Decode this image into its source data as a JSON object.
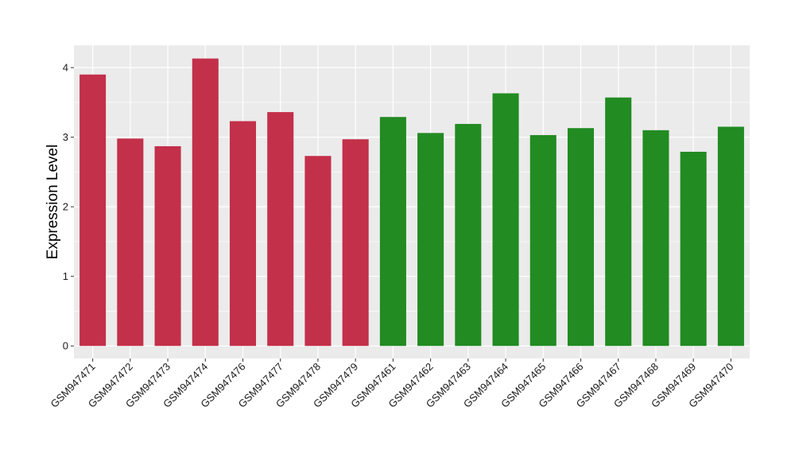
{
  "chart_data": {
    "type": "bar",
    "ylabel": "Expression Level",
    "xlabel": "",
    "ylim": [
      -0.18,
      4.32
    ],
    "yticks": [
      0,
      1,
      2,
      3,
      4
    ],
    "grid": true,
    "categories": [
      "GSM947471",
      "GSM947472",
      "GSM947473",
      "GSM947474",
      "GSM947476",
      "GSM947477",
      "GSM947478",
      "GSM947479",
      "GSM947461",
      "GSM947462",
      "GSM947463",
      "GSM947464",
      "GSM947465",
      "GSM947466",
      "GSM947467",
      "GSM947468",
      "GSM947469",
      "GSM947470"
    ],
    "values": [
      3.9,
      2.98,
      2.87,
      4.13,
      3.23,
      3.36,
      2.73,
      2.97,
      3.29,
      3.06,
      3.19,
      3.63,
      3.03,
      3.13,
      3.57,
      3.1,
      2.79,
      3.15
    ],
    "bar_colors": [
      "#c3304a",
      "#c3304a",
      "#c3304a",
      "#c3304a",
      "#c3304a",
      "#c3304a",
      "#c3304a",
      "#c3304a",
      "#228b22",
      "#228b22",
      "#228b22",
      "#228b22",
      "#228b22",
      "#228b22",
      "#228b22",
      "#228b22",
      "#228b22",
      "#228b22"
    ],
    "panel_background": "#ebebeb",
    "grid_color": "#ffffff"
  }
}
